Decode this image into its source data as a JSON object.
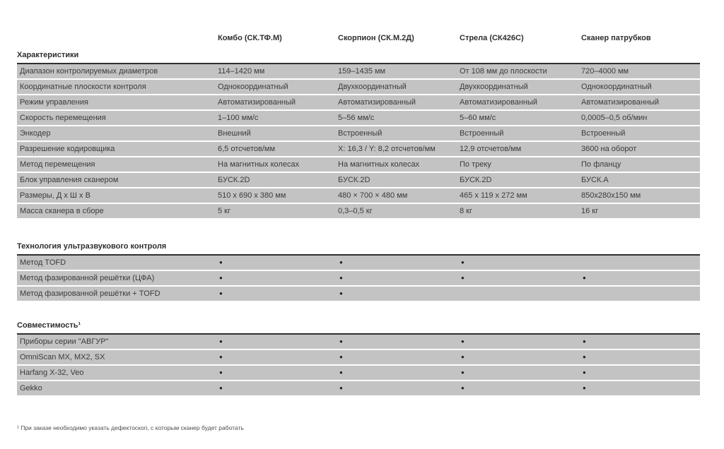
{
  "columns": [
    "Комбо (СК.ТФ.М)",
    "Скорпион (СК.М.2Д)",
    "Стрела (СК426С)",
    "Сканер патрубков"
  ],
  "sections": [
    {
      "title": "Характеристики",
      "rows": [
        {
          "label": "Диапазон контролируемых диаметров",
          "values": [
            "114–1420 мм",
            "159–1435 мм",
            "От 108 мм до плоскости",
            "720–4000 мм"
          ]
        },
        {
          "label": "Координатные плоскости контроля",
          "values": [
            "Однокоординатный",
            "Двухкоординатный",
            "Двухкоординатный",
            "Однокоординатный"
          ]
        },
        {
          "label": "Режим управления",
          "values": [
            "Автоматизированный",
            "Автоматизированный",
            "Автоматизированный",
            "Автоматизированный"
          ]
        },
        {
          "label": "Скорость перемещения",
          "values": [
            "1–100 мм/с",
            "5–56 мм/с",
            "5–60 мм/с",
            "0,0005–0,5 об/мин"
          ]
        },
        {
          "label": "Энкодер",
          "values": [
            "Внешний",
            "Встроенный",
            "Встроенный",
            "Встроенный"
          ]
        },
        {
          "label": "Разрешение кодировщика",
          "values": [
            "6,5 отсчетов/мм",
            "X: 16,3 / Y: 8,2 отсчетов/мм",
            "12,9 отсчетов/мм",
            "3600 на оборот"
          ]
        },
        {
          "label": "Метод перемещения",
          "values": [
            "На магнитных колесах",
            "На магнитных колесах",
            "По треку",
            "По фланцу"
          ]
        },
        {
          "label": "Блок управления сканером",
          "values": [
            "БУСК.2D",
            "БУСК.2D",
            "БУСК.2D",
            "БУСК.А"
          ]
        },
        {
          "label": "Размеры, Д х Ш х В",
          "values": [
            "510 x 690 x 380 мм",
            "480 × 700 × 480 мм",
            "465 x 119 x 272 мм",
            "850x280x150 мм"
          ]
        },
        {
          "label": "Масса сканера в сборе",
          "values": [
            "5 кг",
            "0,3–0,5 кг",
            "8 кг",
            "16 кг"
          ]
        }
      ]
    },
    {
      "title": "Технология ультразвукового контроля",
      "rows": [
        {
          "label": "Метод TOFD",
          "values": [
            "●",
            "●",
            "●",
            ""
          ]
        },
        {
          "label": "Метод фазированной решётки (ЦФА)",
          "values": [
            "●",
            "●",
            "●",
            "●"
          ]
        },
        {
          "label": "Метод фазированной решётки + TOFD",
          "values": [
            "●",
            "●",
            "",
            ""
          ]
        }
      ]
    },
    {
      "title": "Совместимость¹",
      "rows": [
        {
          "label": "Приборы серии \"АВГУР\"",
          "values": [
            "●",
            "●",
            "●",
            "●"
          ]
        },
        {
          "label": "OmniScan MX, MX2, SX",
          "values": [
            "●",
            "●",
            "●",
            "●"
          ]
        },
        {
          "label": "Harfang X-32, Veo",
          "values": [
            "●",
            "●",
            "●",
            "●"
          ]
        },
        {
          "label": "Gekko",
          "values": [
            "●",
            "●",
            "●",
            "●"
          ]
        }
      ]
    }
  ],
  "footnote": "¹ При заказе необходимо указать дефектоскоп, с которым сканер будет работать",
  "colors": {
    "row_bg": "#c3c3c3",
    "rule": "#2f2f2f",
    "text": "#3b3b3b"
  }
}
